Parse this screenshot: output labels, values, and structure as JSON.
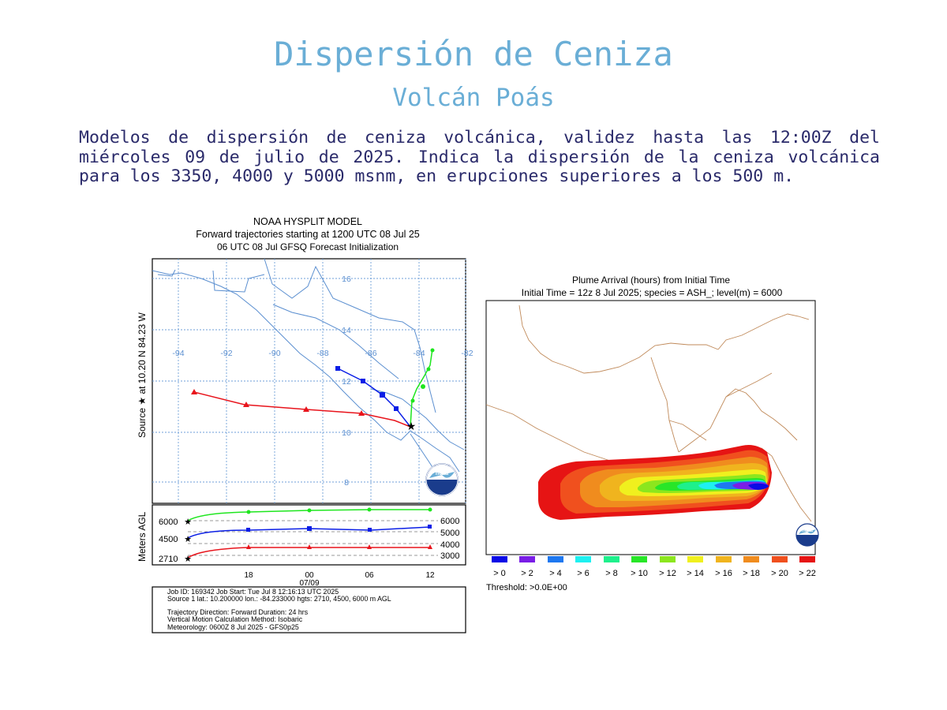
{
  "title": "Dispersión de Ceniza",
  "subtitle": "Volcán Poás",
  "description": "Modelos de dispersión de ceniza volcánica, validez  hasta  las  12:00Z del miércoles 09 de julio de 2025. Indica la dispersión de  la  ceniza volcánica para los 3350, 4000 y 5000 msnm, en erupciones superiores  a los 500 m.",
  "trajectory": {
    "header_line1": "NOAA HYSPLIT MODEL",
    "header_line2": "Forward trajectories starting at 1200 UTC 08 Jul 25",
    "header_line3": "06 UTC 08 Jul    GFSQ  Forecast Initialization",
    "source_label": "Source ★  at    10.20 N   84.23 W",
    "lon_ticks": [
      "-94",
      "-92",
      "-90",
      "-88",
      "-86",
      "-84",
      "-82"
    ],
    "lat_ticks": [
      "16",
      "14",
      "12",
      "10",
      "8"
    ],
    "lat_tick_left": "12",
    "agl_label": "Meters AGL",
    "left_levels": [
      "6000",
      "4500",
      "2710"
    ],
    "right_levels": [
      "6000",
      "5000",
      "4000",
      "3000"
    ],
    "time_ticks": [
      "18",
      "00",
      "06",
      "12"
    ],
    "date_label": "07/09",
    "info_line1": "Job ID: 169342             Job Start: Tue Jul  8 12:16:13 UTC 2025",
    "info_line2": "Source 1 lat.: 10.200000  lon.: -84.233000  hgts: 2710, 4500, 6000 m AGL",
    "info_line3": "Trajectory Direction: Forward      Duration: 24 hrs",
    "info_line4": "Vertical Motion Calculation Method:       Isobaric",
    "info_line5": "Meteorology: 0600Z 8 Jul 2025 - GFS0p25",
    "noaa_label": "noaa",
    "series_colors": {
      "low": "#e8141c",
      "mid": "#0a1ee6",
      "high": "#1ee61e"
    }
  },
  "plume": {
    "title_line1": "Plume Arrival (hours) from Initial Time",
    "title_line2": "Initial Time = 12z  8 Jul 2025;  species = ASH_;  level(m) =  6000",
    "legend": [
      {
        "label": "> 0",
        "color": "#0a0ae6"
      },
      {
        "label": "> 2",
        "color": "#7a1ee6"
      },
      {
        "label": "> 4",
        "color": "#1e78f0"
      },
      {
        "label": "> 6",
        "color": "#1ef0f0"
      },
      {
        "label": "> 8",
        "color": "#1ef08c"
      },
      {
        "label": "> 10",
        "color": "#28e628"
      },
      {
        "label": "> 12",
        "color": "#8ce61e"
      },
      {
        "label": "> 14",
        "color": "#f0f01e"
      },
      {
        "label": "> 16",
        "color": "#f0b41e"
      },
      {
        "label": "> 18",
        "color": "#f08c1e"
      },
      {
        "label": "> 20",
        "color": "#f0501e"
      },
      {
        "label": "> 22",
        "color": "#e61414"
      }
    ],
    "threshold": "Threshold: >0.0E+00",
    "noaa_label": "noaa"
  }
}
